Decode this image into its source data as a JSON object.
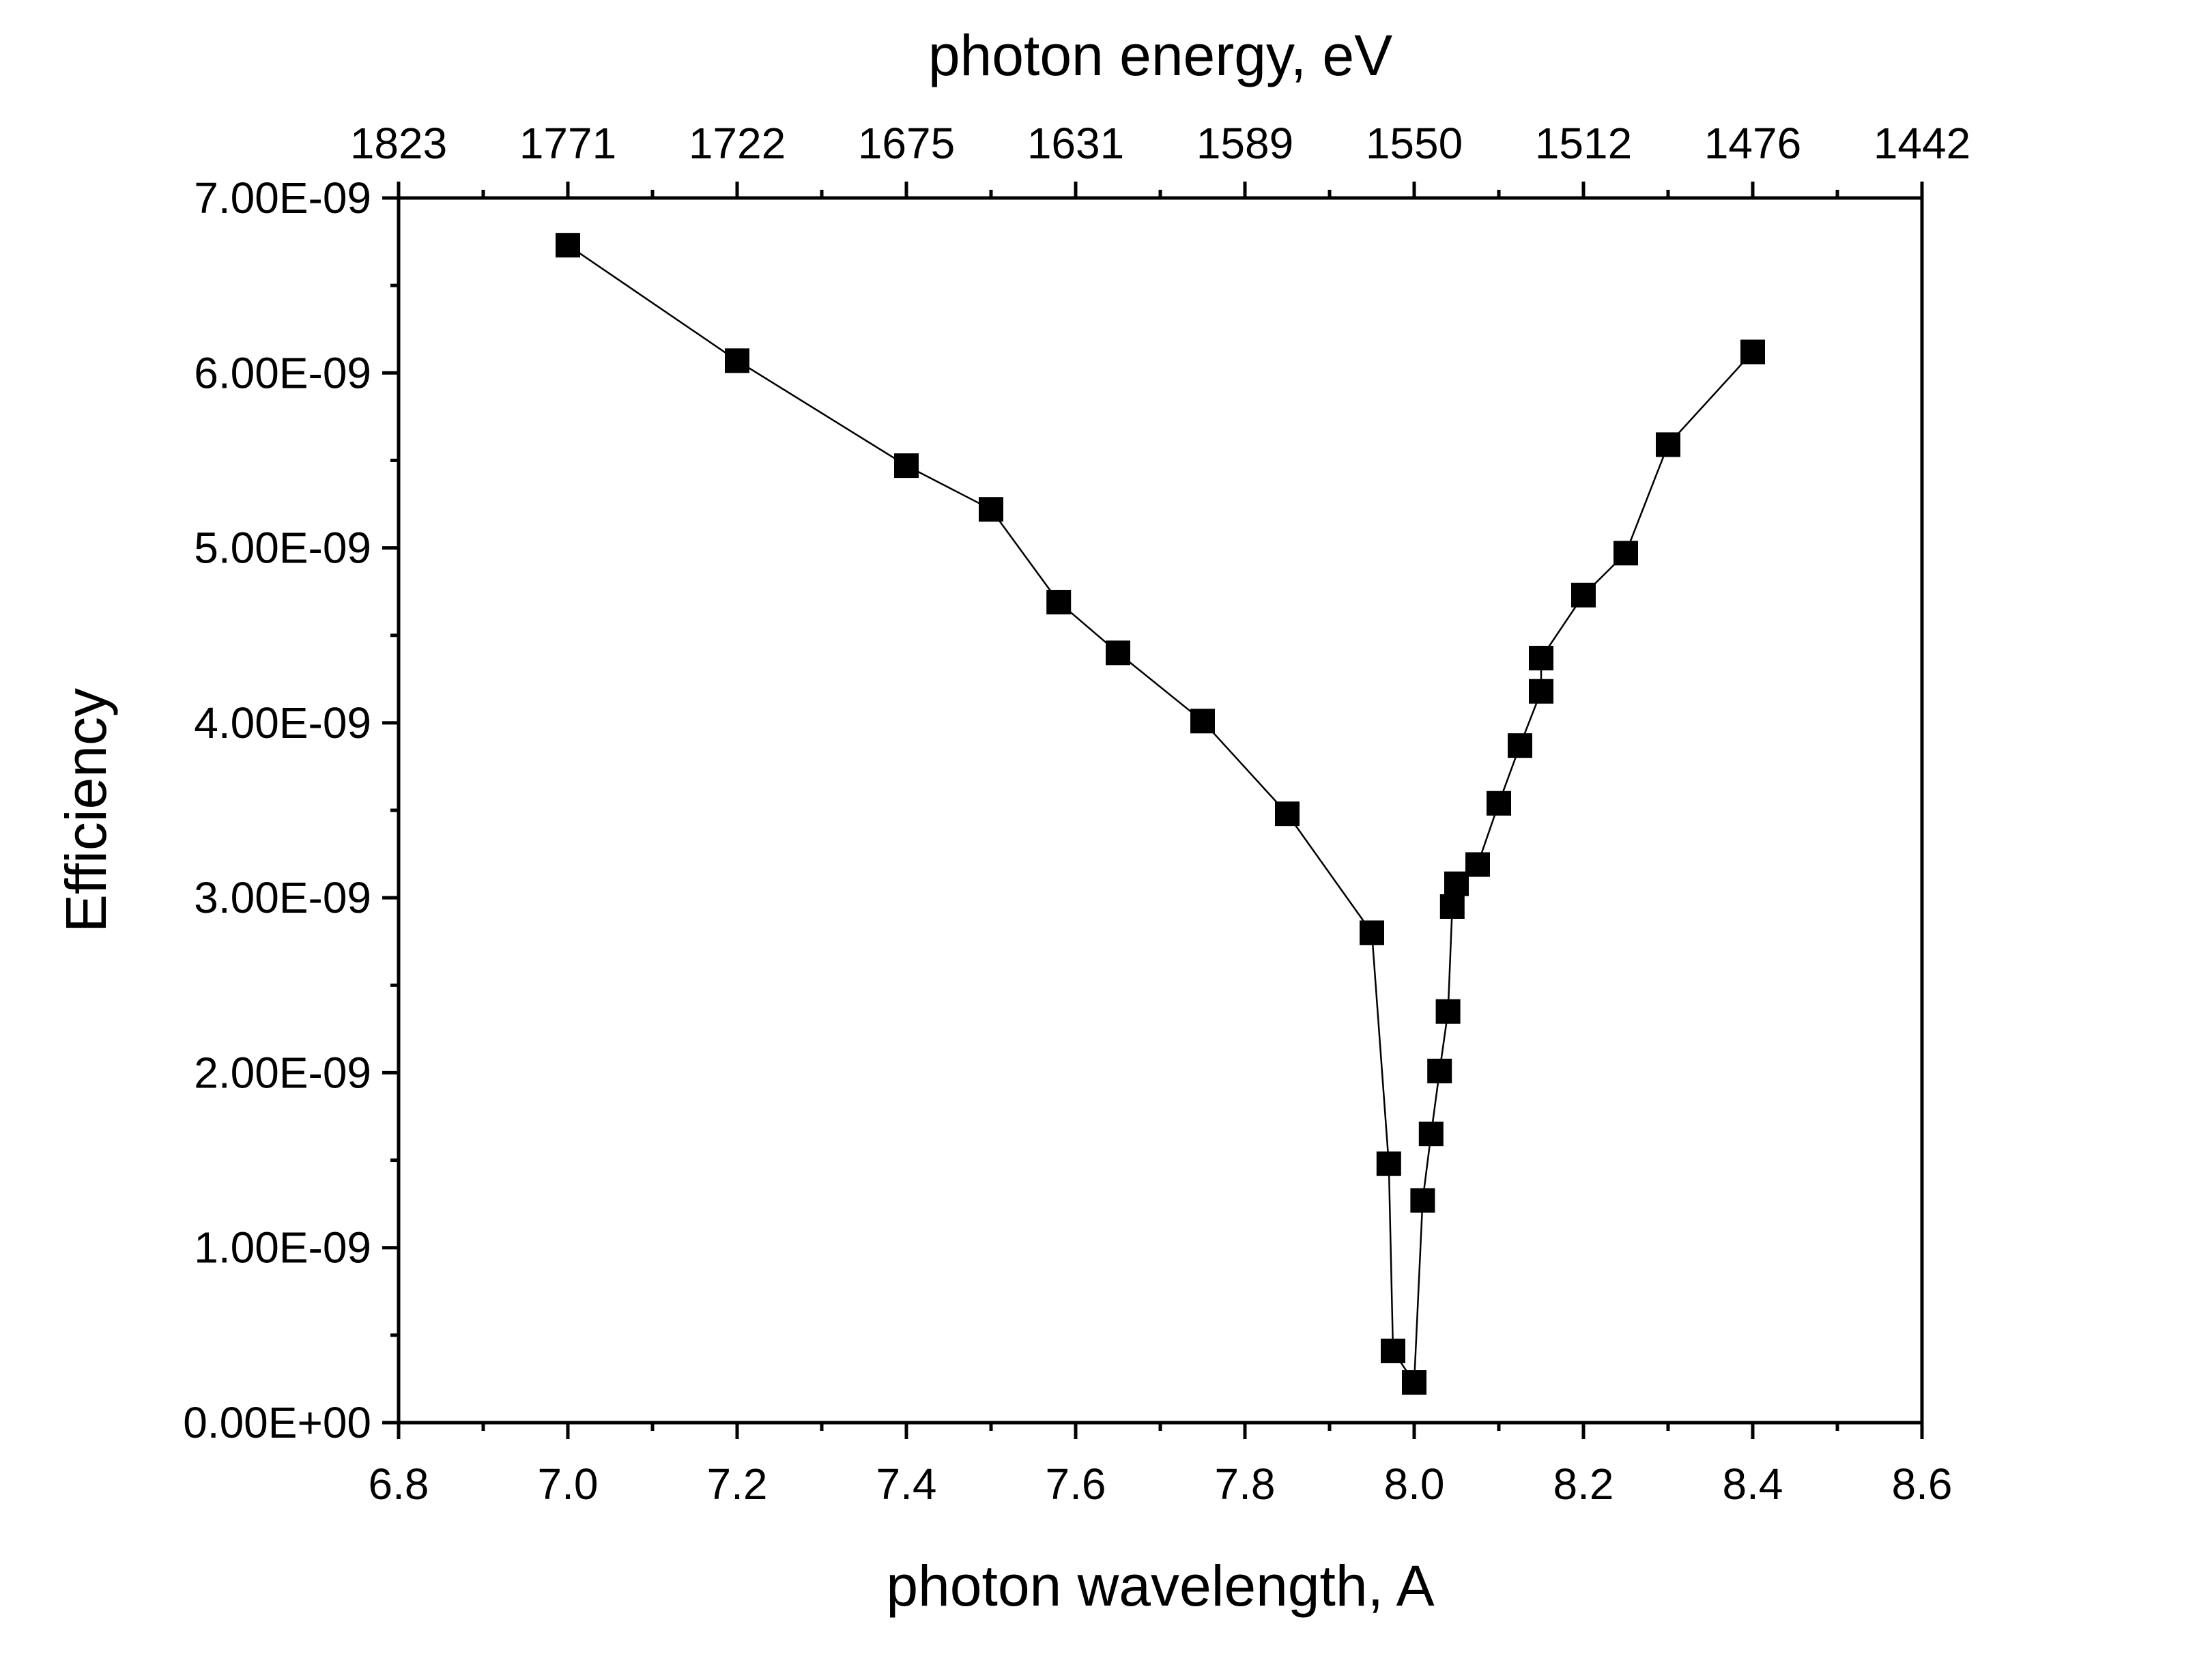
{
  "chart_data": {
    "type": "scatter",
    "title": "",
    "xlabel": "photon wavelength, A",
    "ylabel": "Efficiency",
    "x2label": "photon energy, eV",
    "xlim": [
      6.8,
      8.6
    ],
    "ylim": [
      0,
      7e-09
    ],
    "x_ticks": [
      {
        "value": 6.8,
        "label": "6.8"
      },
      {
        "value": 7.0,
        "label": "7.0"
      },
      {
        "value": 7.2,
        "label": "7.2"
      },
      {
        "value": 7.4,
        "label": "7.4"
      },
      {
        "value": 7.6,
        "label": "7.6"
      },
      {
        "value": 7.8,
        "label": "7.8"
      },
      {
        "value": 8.0,
        "label": "8.0"
      },
      {
        "value": 8.2,
        "label": "8.2"
      },
      {
        "value": 8.4,
        "label": "8.4"
      },
      {
        "value": 8.6,
        "label": "8.6"
      }
    ],
    "y_ticks": [
      {
        "value": 0,
        "label": "0.00E+00"
      },
      {
        "value": 1e-09,
        "label": "1.00E-09"
      },
      {
        "value": 2e-09,
        "label": "2.00E-09"
      },
      {
        "value": 3e-09,
        "label": "3.00E-09"
      },
      {
        "value": 4e-09,
        "label": "4.00E-09"
      },
      {
        "value": 5e-09,
        "label": "5.00E-09"
      },
      {
        "value": 6e-09,
        "label": "6.00E-09"
      },
      {
        "value": 7e-09,
        "label": "7.00E-09"
      }
    ],
    "top_ticks": [
      {
        "wavelength": 6.8,
        "label": "1823"
      },
      {
        "wavelength": 7.0,
        "label": "1771"
      },
      {
        "wavelength": 7.2,
        "label": "1722"
      },
      {
        "wavelength": 7.4,
        "label": "1675"
      },
      {
        "wavelength": 7.6,
        "label": "1631"
      },
      {
        "wavelength": 7.8,
        "label": "1589"
      },
      {
        "wavelength": 8.0,
        "label": "1550"
      },
      {
        "wavelength": 8.2,
        "label": "1512"
      },
      {
        "wavelength": 8.4,
        "label": "1476"
      },
      {
        "wavelength": 8.6,
        "label": "1442"
      }
    ],
    "grid": false,
    "legend": false,
    "marker": "square",
    "connected": true,
    "color": "#000000",
    "series": [
      {
        "points": [
          {
            "x": 7.0,
            "y": 6.73e-09
          },
          {
            "x": 7.2,
            "y": 6.07e-09
          },
          {
            "x": 7.4,
            "y": 5.47e-09
          },
          {
            "x": 7.5,
            "y": 5.22e-09
          },
          {
            "x": 7.58,
            "y": 4.69e-09
          },
          {
            "x": 7.65,
            "y": 4.4e-09
          },
          {
            "x": 7.75,
            "y": 4.01e-09
          },
          {
            "x": 7.85,
            "y": 3.48e-09
          },
          {
            "x": 7.95,
            "y": 2.8e-09
          },
          {
            "x": 7.97,
            "y": 1.48e-09
          },
          {
            "x": 7.975,
            "y": 4.1e-10
          },
          {
            "x": 8.0,
            "y": 2.3e-10
          },
          {
            "x": 8.01,
            "y": 1.27e-09
          },
          {
            "x": 8.02,
            "y": 1.65e-09
          },
          {
            "x": 8.03,
            "y": 2.01e-09
          },
          {
            "x": 8.04,
            "y": 2.35e-09
          },
          {
            "x": 8.045,
            "y": 2.95e-09
          },
          {
            "x": 8.05,
            "y": 3.08e-09
          },
          {
            "x": 8.075,
            "y": 3.19e-09
          },
          {
            "x": 8.1,
            "y": 3.54e-09
          },
          {
            "x": 8.125,
            "y": 3.87e-09
          },
          {
            "x": 8.15,
            "y": 4.18e-09
          },
          {
            "x": 8.15,
            "y": 4.37e-09
          },
          {
            "x": 8.2,
            "y": 4.73e-09
          },
          {
            "x": 8.25,
            "y": 4.97e-09
          },
          {
            "x": 8.3,
            "y": 5.59e-09
          },
          {
            "x": 8.4,
            "y": 6.12e-09
          }
        ]
      }
    ]
  }
}
